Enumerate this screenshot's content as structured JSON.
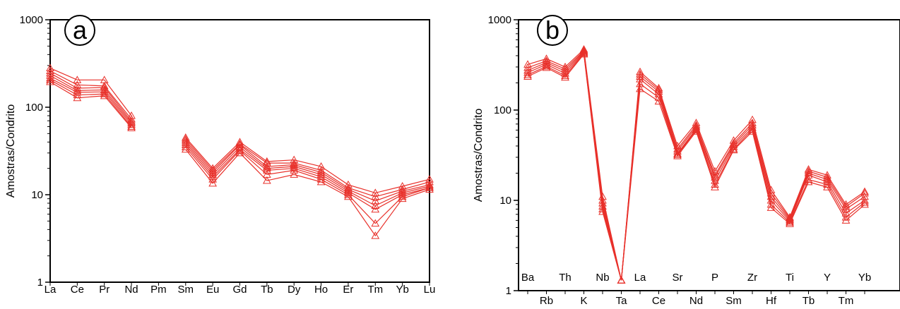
{
  "chart_data": [
    {
      "type": "line",
      "panel_label": "a",
      "ylabel": "Amostras/Condrito",
      "xlabel": "",
      "yscale": "log",
      "ylim": [
        1,
        1000
      ],
      "yticks": [
        {
          "value": 1,
          "label": "1"
        },
        {
          "value": 10,
          "label": "10"
        },
        {
          "value": 100,
          "label": "100"
        },
        {
          "value": 1000,
          "label": "1000"
        }
      ],
      "grid": false,
      "legend": "none",
      "series_color": "#e8302a",
      "marker": "open-triangle",
      "categories": [
        "La",
        "Ce",
        "Pr",
        "Nd",
        "Pm",
        "Sm",
        "Eu",
        "Gd",
        "Tb",
        "Dy",
        "Ho",
        "Er",
        "Tm",
        "Yb",
        "Lu"
      ],
      "series": [
        {
          "values": [
            280,
            205,
            205,
            80,
            null,
            45,
            20,
            40,
            24,
            25,
            21,
            13,
            10.5,
            12.5,
            15
          ]
        },
        {
          "values": [
            260,
            180,
            175,
            73,
            null,
            43,
            19,
            38,
            23,
            23,
            19,
            12,
            9.5,
            11.5,
            14
          ]
        },
        {
          "values": [
            245,
            165,
            168,
            69,
            null,
            41,
            18,
            37,
            21,
            22,
            18,
            11.5,
            8.5,
            11,
            13
          ]
        },
        {
          "values": [
            230,
            155,
            158,
            66,
            null,
            39,
            17,
            35,
            20,
            21,
            17,
            11,
            7.5,
            10.5,
            12.5
          ]
        },
        {
          "values": [
            215,
            148,
            150,
            63,
            null,
            37,
            16,
            33,
            19,
            20,
            16,
            10.5,
            6.8,
            10,
            12
          ]
        },
        {
          "values": [
            205,
            138,
            142,
            60,
            null,
            35,
            15,
            32,
            17,
            19,
            15,
            10,
            4.7,
            9.5,
            12
          ]
        },
        {
          "values": [
            195,
            128,
            135,
            58,
            null,
            33,
            13.5,
            30,
            14.5,
            17,
            14,
            9.5,
            3.4,
            9,
            11.5
          ]
        }
      ]
    },
    {
      "type": "line",
      "panel_label": "b",
      "ylabel": "Amostras/Condrito",
      "xlabel": "",
      "yscale": "log",
      "ylim": [
        1,
        1000
      ],
      "yticks": [
        {
          "value": 1,
          "label": "1"
        },
        {
          "value": 10,
          "label": "10"
        },
        {
          "value": 100,
          "label": "100"
        },
        {
          "value": 1000,
          "label": "1000"
        }
      ],
      "grid": false,
      "legend": "none",
      "series_color": "#e8302a",
      "marker": "open-triangle",
      "categories": [
        "Ba",
        "Rb",
        "Th",
        "K",
        "Nb",
        "Ta",
        "La",
        "Ce",
        "Sr",
        "Nd",
        "P",
        "Sm",
        "Zr",
        "Hf",
        "Ti",
        "Tb",
        "Y",
        "Tm",
        "Yb"
      ],
      "series": [
        {
          "values": [
            320,
            370,
            300,
            470,
            11,
            1.3,
            265,
            175,
            40,
            72,
            21,
            46,
            78,
            13,
            6.5,
            22,
            19,
            9,
            12.5
          ]
        },
        {
          "values": [
            295,
            350,
            285,
            455,
            10,
            1.3,
            250,
            168,
            37,
            68,
            19,
            43,
            72,
            12,
            6.3,
            21,
            18,
            8.5,
            12
          ]
        },
        {
          "values": [
            275,
            335,
            270,
            445,
            9.3,
            1.3,
            235,
            160,
            35,
            65,
            18,
            41,
            68,
            11,
            6.1,
            20,
            17,
            8,
            11
          ]
        },
        {
          "values": [
            260,
            320,
            255,
            435,
            8.6,
            1.3,
            220,
            150,
            33,
            62,
            16.5,
            39,
            64,
            10,
            5.9,
            19,
            16,
            7.2,
            10
          ]
        },
        {
          "values": [
            245,
            305,
            240,
            425,
            8,
            1.3,
            195,
            138,
            32,
            60,
            15,
            37,
            61,
            9,
            5.7,
            17,
            15,
            6.5,
            9.5
          ]
        },
        {
          "values": [
            235,
            295,
            230,
            415,
            7.5,
            1.3,
            172,
            125,
            31,
            58,
            14,
            36,
            58,
            8.3,
            5.5,
            16,
            14,
            6,
            9
          ]
        }
      ]
    }
  ]
}
